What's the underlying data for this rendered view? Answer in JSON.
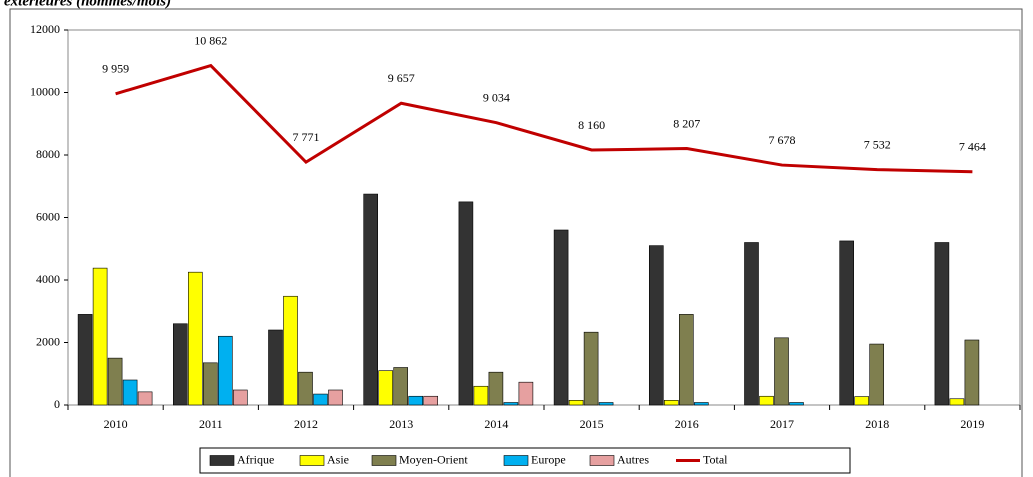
{
  "chart_data": {
    "type": "bar",
    "title": "extérieures (hommes/mois)",
    "categories": [
      "2010",
      "2011",
      "2012",
      "2013",
      "2014",
      "2015",
      "2016",
      "2017",
      "2018",
      "2019"
    ],
    "series": [
      {
        "name": "Afrique",
        "color": "#333333",
        "values": [
          2900,
          2600,
          2400,
          6750,
          6500,
          5600,
          5100,
          5200,
          5250,
          5200
        ]
      },
      {
        "name": "Asie",
        "color": "#ffff00",
        "values": [
          4380,
          4250,
          3480,
          1100,
          600,
          150,
          150,
          280,
          270,
          200
        ]
      },
      {
        "name": "Moyen-Orient",
        "color": "#7f7f4f",
        "values": [
          1500,
          1350,
          1050,
          1200,
          1050,
          2330,
          2900,
          2150,
          1950,
          2080
        ]
      },
      {
        "name": "Europe",
        "color": "#00b0f0",
        "values": [
          800,
          2200,
          350,
          280,
          80,
          80,
          80,
          80,
          0,
          0
        ]
      },
      {
        "name": "Autres",
        "color": "#e6a0a0",
        "values": [
          420,
          480,
          480,
          280,
          730,
          0,
          0,
          0,
          0,
          0
        ]
      },
      {
        "name": "Total",
        "color": "#c00000",
        "type": "line",
        "values": [
          9959,
          10862,
          7771,
          9657,
          9034,
          8160,
          8207,
          7678,
          7532,
          7464
        ],
        "value_labels": [
          "9 959",
          "10 862",
          "7 771",
          "9 657",
          "9 034",
          "8 160",
          "8 207",
          "7 678",
          "7 532",
          "7 464"
        ]
      }
    ],
    "ylim": [
      0,
      12000
    ],
    "yticks": [
      0,
      2000,
      4000,
      6000,
      8000,
      10000,
      12000
    ],
    "grid": false,
    "legend": "bottom"
  }
}
